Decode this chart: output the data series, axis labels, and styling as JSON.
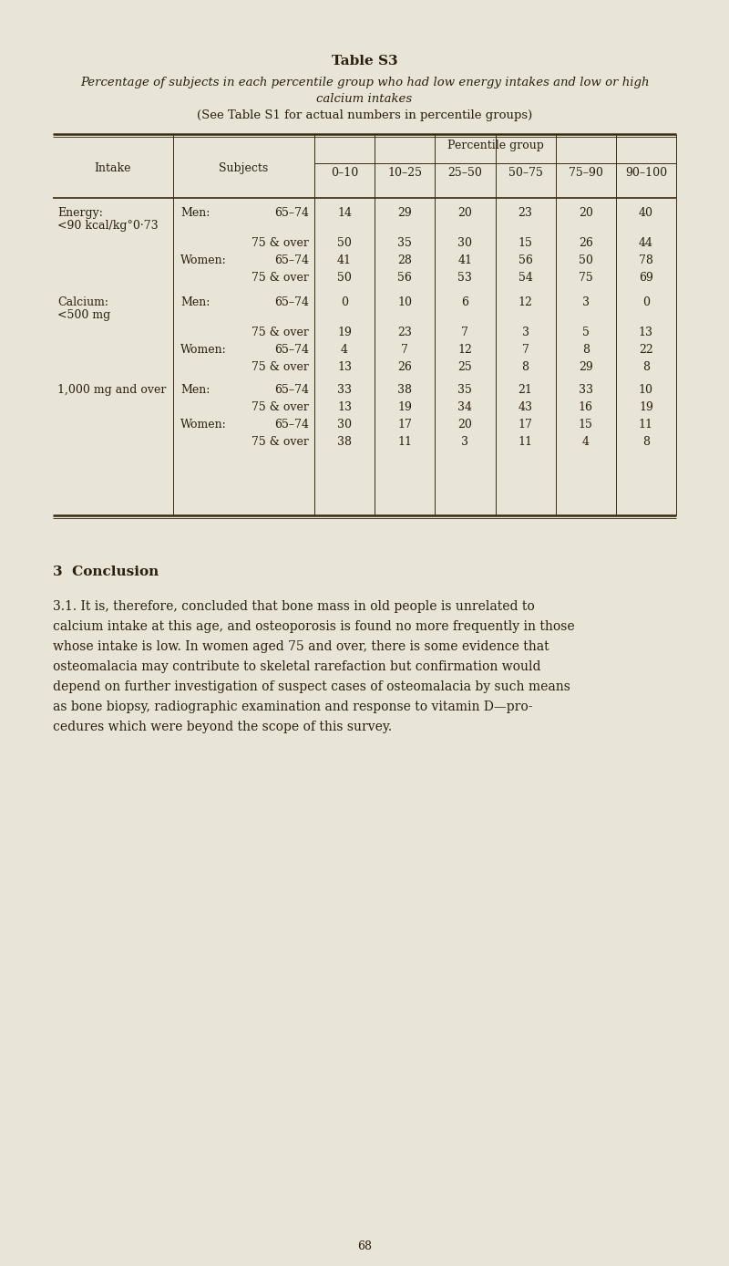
{
  "bg_color": "#e8e4d8",
  "text_color": "#2a1f0e",
  "line_color": "#3a2a10",
  "title": "Table S3",
  "subtitle_line1": "Percentage of subjects in each percentile group who had low energy intakes and low or high",
  "subtitle_line2": "calcium intakes",
  "subtitle_line3": "(See Table S1 for actual numbers in percentile groups)",
  "col_headers": [
    "0–10",
    "10–25",
    "25–50",
    "50–75",
    "75–90",
    "90–100"
  ],
  "header1": "Intake",
  "header2": "Subjects",
  "header3": "Percentile group",
  "table_rows": [
    {
      "intake": "Energy:",
      "sub_intake": "<90 kcal/kg°0·73",
      "gender": "Men:",
      "age": "65–74",
      "vals": [
        "14",
        "29",
        "20",
        "23",
        "20",
        "40"
      ],
      "row_type": "energy_label"
    },
    {
      "intake": "",
      "sub_intake": "",
      "gender": "",
      "age": "75 & over",
      "vals": [
        "50",
        "35",
        "30",
        "15",
        "26",
        "44"
      ],
      "row_type": "normal"
    },
    {
      "intake": "",
      "sub_intake": "",
      "gender": "Women:",
      "age": "65–74",
      "vals": [
        "41",
        "28",
        "41",
        "56",
        "50",
        "78"
      ],
      "row_type": "normal"
    },
    {
      "intake": "",
      "sub_intake": "",
      "gender": "",
      "age": "75 & over",
      "vals": [
        "50",
        "56",
        "53",
        "54",
        "75",
        "69"
      ],
      "row_type": "normal"
    },
    {
      "intake": "Calcium:",
      "sub_intake": "<500 mg",
      "gender": "Men:",
      "age": "65–74",
      "vals": [
        "0",
        "10",
        "6",
        "12",
        "3",
        "0"
      ],
      "row_type": "calcium_label"
    },
    {
      "intake": "",
      "sub_intake": "",
      "gender": "",
      "age": "75 & over",
      "vals": [
        "19",
        "23",
        "7",
        "3",
        "5",
        "13"
      ],
      "row_type": "normal"
    },
    {
      "intake": "",
      "sub_intake": "",
      "gender": "Women:",
      "age": "65–74",
      "vals": [
        "4",
        "7",
        "12",
        "7",
        "8",
        "22"
      ],
      "row_type": "normal"
    },
    {
      "intake": "",
      "sub_intake": "",
      "gender": "",
      "age": "75 & over",
      "vals": [
        "13",
        "26",
        "25",
        "8",
        "29",
        "8"
      ],
      "row_type": "normal"
    },
    {
      "intake": "",
      "sub_intake": "1,000 mg and over",
      "gender": "Men:",
      "age": "65–74",
      "vals": [
        "33",
        "38",
        "35",
        "21",
        "33",
        "10"
      ],
      "row_type": "sub_label"
    },
    {
      "intake": "",
      "sub_intake": "",
      "gender": "",
      "age": "75 & over",
      "vals": [
        "13",
        "19",
        "34",
        "43",
        "16",
        "19"
      ],
      "row_type": "normal"
    },
    {
      "intake": "",
      "sub_intake": "",
      "gender": "Women:",
      "age": "65–74",
      "vals": [
        "30",
        "17",
        "20",
        "17",
        "15",
        "11"
      ],
      "row_type": "normal"
    },
    {
      "intake": "",
      "sub_intake": "",
      "gender": "",
      "age": "75 & over",
      "vals": [
        "38",
        "11",
        "3",
        "11",
        "4",
        "8"
      ],
      "row_type": "normal"
    }
  ],
  "conclusion_heading": "3  Conclusion",
  "conclusion_lines": [
    "3.1. It is, therefore, concluded that bone mass in old people is unrelated to",
    "calcium intake at this age, and osteoporosis is found no more frequently in those",
    "whose intake is low. In women aged 75 and over, there is some evidence that",
    "osteomalacia may contribute to skeletal rarefaction but confirmation would",
    "depend on further investigation of suspect cases of osteomalacia by such means",
    "as bone biopsy, radiographic examination and response to vitamin D—pro-",
    "cedures which were beyond the scope of this survey."
  ],
  "page_number": "68"
}
